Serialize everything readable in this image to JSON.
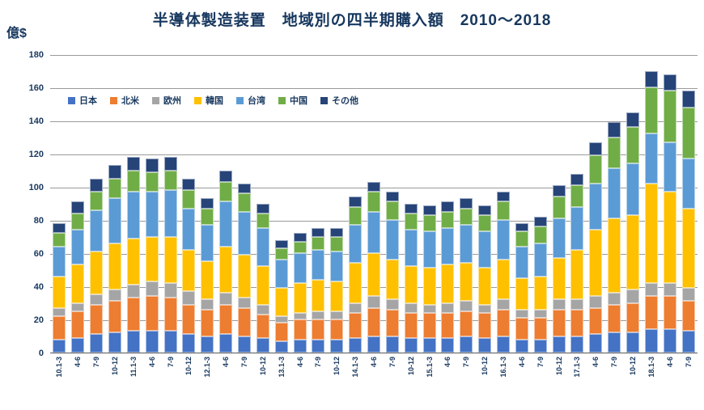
{
  "title": "半導体製造装置　地域別の四半期購入額　2010～2018",
  "unit_label": "億$",
  "chart_data": {
    "type": "bar",
    "stacked": true,
    "title": "半導体製造装置　地域別の四半期購入額　2010～2018",
    "xlabel": "",
    "ylabel": "億$",
    "ylim": [
      0,
      180
    ],
    "yticks": [
      0,
      20,
      40,
      60,
      80,
      100,
      120,
      140,
      160,
      180
    ],
    "grid": true,
    "legend_position": "inside-top-left",
    "categories": [
      "10.1-3",
      "4-6",
      "7-9",
      "10-12",
      "11.1-3",
      "4-6",
      "7-9",
      "10-12",
      "12.1-3",
      "4-6",
      "7-9",
      "10-12",
      "13.1-3",
      "4-6",
      "7-9",
      "10-12",
      "14.1-3",
      "4-6",
      "7-9",
      "10-12",
      "15.1-3",
      "4-6",
      "7-9",
      "10-12",
      "16.1-3",
      "4-6",
      "7-9",
      "10-12",
      "17.1-3",
      "4-6",
      "7-9",
      "10-12",
      "18.1-3",
      "4-6",
      "7-9"
    ],
    "series": [
      {
        "name": "日本",
        "color": "#4472C4",
        "values": [
          8,
          9,
          11,
          12,
          13,
          13,
          13,
          11,
          10,
          11,
          10,
          9,
          7,
          8,
          8,
          8,
          9,
          10,
          10,
          9,
          9,
          9,
          10,
          9,
          10,
          8,
          8,
          10,
          10,
          11,
          12,
          12,
          14,
          14,
          13
        ]
      },
      {
        "name": "北米",
        "color": "#ED7D31",
        "values": [
          14,
          16,
          18,
          19,
          20,
          21,
          20,
          18,
          16,
          18,
          17,
          14,
          11,
          12,
          12,
          12,
          15,
          17,
          16,
          15,
          15,
          15,
          15,
          15,
          16,
          13,
          13,
          16,
          16,
          16,
          17,
          18,
          20,
          20,
          18
        ]
      },
      {
        "name": "欧州",
        "color": "#A5A5A5",
        "values": [
          5,
          5,
          6,
          7,
          8,
          9,
          9,
          8,
          6,
          7,
          6,
          6,
          4,
          4,
          5,
          5,
          6,
          7,
          6,
          6,
          5,
          6,
          6,
          5,
          6,
          5,
          5,
          6,
          6,
          7,
          7,
          8,
          8,
          8,
          8
        ]
      },
      {
        "name": "韓国",
        "color": "#FFC000",
        "values": [
          19,
          23,
          26,
          28,
          28,
          27,
          28,
          25,
          23,
          28,
          26,
          23,
          17,
          18,
          19,
          18,
          24,
          26,
          24,
          22,
          22,
          23,
          23,
          22,
          24,
          19,
          20,
          25,
          30,
          40,
          45,
          45,
          60,
          55,
          48
        ]
      },
      {
        "name": "台湾",
        "color": "#5B9BD5",
        "values": [
          18,
          21,
          25,
          27,
          28,
          27,
          28,
          25,
          22,
          27,
          26,
          23,
          17,
          18,
          18,
          18,
          23,
          25,
          24,
          22,
          22,
          22,
          23,
          22,
          24,
          19,
          20,
          24,
          26,
          28,
          30,
          31,
          30,
          30,
          30
        ]
      },
      {
        "name": "中国",
        "color": "#70AD47",
        "values": [
          8,
          10,
          11,
          12,
          13,
          12,
          12,
          11,
          10,
          12,
          11,
          9,
          7,
          7,
          8,
          9,
          11,
          12,
          11,
          10,
          10,
          10,
          10,
          10,
          11,
          9,
          10,
          13,
          13,
          17,
          19,
          22,
          28,
          31,
          31
        ]
      },
      {
        "name": "その他",
        "color": "#264478",
        "values": [
          6,
          7,
          8,
          8,
          8,
          8,
          8,
          7,
          6,
          7,
          6,
          6,
          5,
          5,
          5,
          5,
          6,
          6,
          6,
          6,
          6,
          6,
          6,
          6,
          6,
          5,
          6,
          7,
          7,
          8,
          9,
          9,
          10,
          10,
          10
        ]
      }
    ]
  }
}
